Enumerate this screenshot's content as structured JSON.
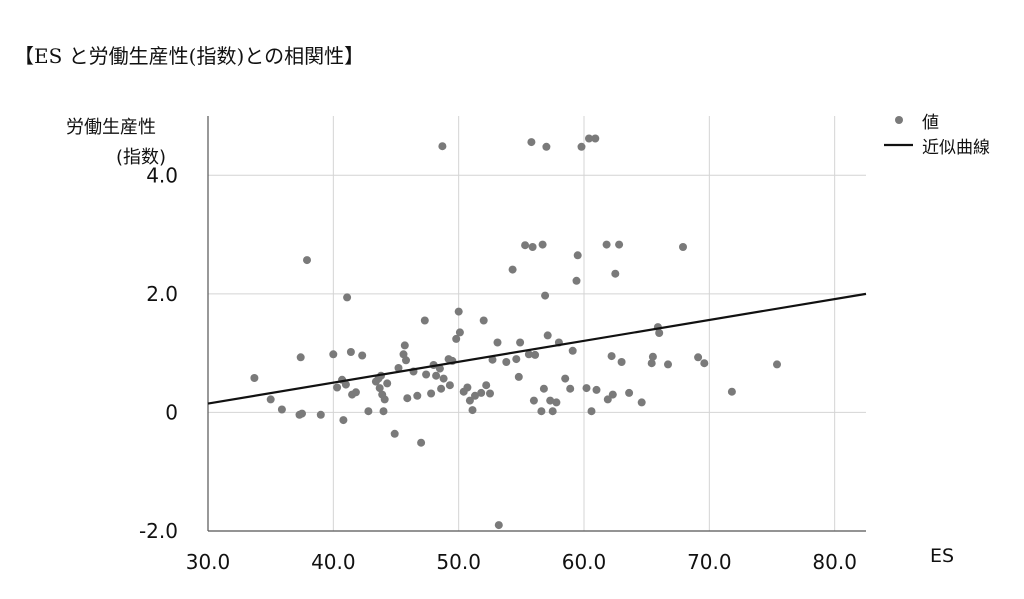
{
  "page": {
    "title": "【ES と労働生産性(指数)との相関性】"
  },
  "chart_data": {
    "type": "scatter",
    "xlabel": "ES",
    "ylabel_lines": [
      "労働生産性",
      "(指数)"
    ],
    "xlim": [
      30,
      82.5
    ],
    "ylim": [
      -2.0,
      5.0
    ],
    "xticks": [
      "30.0",
      "40.0",
      "50.0",
      "60.0",
      "70.0",
      "80.0"
    ],
    "yticks": [
      "-2.0",
      "0",
      "2.0",
      "4.0"
    ],
    "grid": true,
    "legend_position": "top-right",
    "legend": {
      "points_label": "値",
      "fit_label": "近似曲線"
    },
    "colors": {
      "points": "#7a7a7a",
      "fit_line": "#111111",
      "grid": "#d4d4d4",
      "axis": "#555555"
    },
    "fit_line": {
      "x": [
        30.0,
        82.5
      ],
      "y": [
        0.15,
        2.0
      ]
    },
    "points": [
      [
        33.7,
        0.58
      ],
      [
        35.0,
        0.22
      ],
      [
        35.9,
        0.05
      ],
      [
        37.3,
        -0.04
      ],
      [
        37.4,
        0.93
      ],
      [
        37.5,
        -0.02
      ],
      [
        37.9,
        2.57
      ],
      [
        39.0,
        -0.04
      ],
      [
        40.0,
        0.98
      ],
      [
        40.3,
        0.42
      ],
      [
        40.7,
        0.55
      ],
      [
        40.8,
        -0.13
      ],
      [
        41.0,
        0.47
      ],
      [
        41.1,
        1.94
      ],
      [
        41.4,
        1.02
      ],
      [
        41.5,
        0.3
      ],
      [
        41.8,
        0.34
      ],
      [
        42.3,
        0.96
      ],
      [
        42.8,
        0.02
      ],
      [
        43.4,
        0.52
      ],
      [
        43.6,
        0.57
      ],
      [
        43.7,
        0.41
      ],
      [
        43.8,
        0.62
      ],
      [
        43.9,
        0.3
      ],
      [
        44.0,
        0.02
      ],
      [
        44.1,
        0.22
      ],
      [
        44.3,
        0.49
      ],
      [
        44.9,
        -0.36
      ],
      [
        45.2,
        0.75
      ],
      [
        45.6,
        0.98
      ],
      [
        45.7,
        1.13
      ],
      [
        45.8,
        0.88
      ],
      [
        45.9,
        0.24
      ],
      [
        46.4,
        0.69
      ],
      [
        46.7,
        0.28
      ],
      [
        47.0,
        -0.51
      ],
      [
        47.3,
        1.55
      ],
      [
        47.4,
        0.64
      ],
      [
        47.8,
        0.32
      ],
      [
        48.0,
        0.8
      ],
      [
        48.2,
        0.62
      ],
      [
        48.5,
        0.74
      ],
      [
        48.6,
        0.4
      ],
      [
        48.7,
        4.49
      ],
      [
        48.8,
        0.57
      ],
      [
        49.2,
        0.9
      ],
      [
        49.3,
        0.46
      ],
      [
        49.5,
        0.87
      ],
      [
        49.8,
        1.24
      ],
      [
        50.0,
        1.7
      ],
      [
        50.1,
        1.35
      ],
      [
        50.4,
        0.35
      ],
      [
        50.7,
        0.42
      ],
      [
        50.9,
        0.2
      ],
      [
        51.1,
        0.04
      ],
      [
        51.3,
        0.28
      ],
      [
        51.8,
        0.33
      ],
      [
        52.0,
        1.55
      ],
      [
        52.2,
        0.46
      ],
      [
        52.5,
        0.32
      ],
      [
        52.7,
        0.89
      ],
      [
        53.1,
        1.18
      ],
      [
        53.2,
        -1.9
      ],
      [
        53.8,
        0.85
      ],
      [
        54.3,
        2.41
      ],
      [
        54.6,
        0.9
      ],
      [
        54.8,
        0.6
      ],
      [
        54.9,
        1.18
      ],
      [
        55.3,
        2.82
      ],
      [
        55.6,
        0.98
      ],
      [
        55.8,
        4.56
      ],
      [
        55.9,
        2.79
      ],
      [
        56.0,
        0.2
      ],
      [
        56.1,
        0.97
      ],
      [
        56.6,
        0.02
      ],
      [
        56.7,
        2.83
      ],
      [
        56.8,
        0.4
      ],
      [
        56.9,
        1.97
      ],
      [
        57.0,
        4.48
      ],
      [
        57.1,
        1.3
      ],
      [
        57.3,
        0.2
      ],
      [
        57.5,
        0.02
      ],
      [
        57.8,
        0.17
      ],
      [
        58.0,
        1.18
      ],
      [
        58.5,
        0.57
      ],
      [
        58.9,
        0.4
      ],
      [
        59.1,
        1.04
      ],
      [
        59.4,
        2.22
      ],
      [
        59.5,
        2.65
      ],
      [
        59.8,
        4.48
      ],
      [
        60.2,
        0.41
      ],
      [
        60.4,
        4.62
      ],
      [
        60.6,
        0.02
      ],
      [
        60.9,
        4.62
      ],
      [
        61.0,
        0.38
      ],
      [
        61.8,
        2.83
      ],
      [
        61.9,
        0.22
      ],
      [
        62.2,
        0.95
      ],
      [
        62.3,
        0.3
      ],
      [
        62.5,
        2.34
      ],
      [
        62.8,
        2.83
      ],
      [
        63.0,
        0.85
      ],
      [
        63.6,
        0.33
      ],
      [
        64.6,
        0.17
      ],
      [
        65.4,
        0.83
      ],
      [
        65.5,
        0.94
      ],
      [
        65.9,
        1.44
      ],
      [
        66.0,
        1.34
      ],
      [
        66.7,
        0.81
      ],
      [
        67.9,
        2.79
      ],
      [
        69.1,
        0.93
      ],
      [
        69.6,
        0.83
      ],
      [
        71.8,
        0.35
      ],
      [
        75.4,
        0.81
      ]
    ]
  }
}
